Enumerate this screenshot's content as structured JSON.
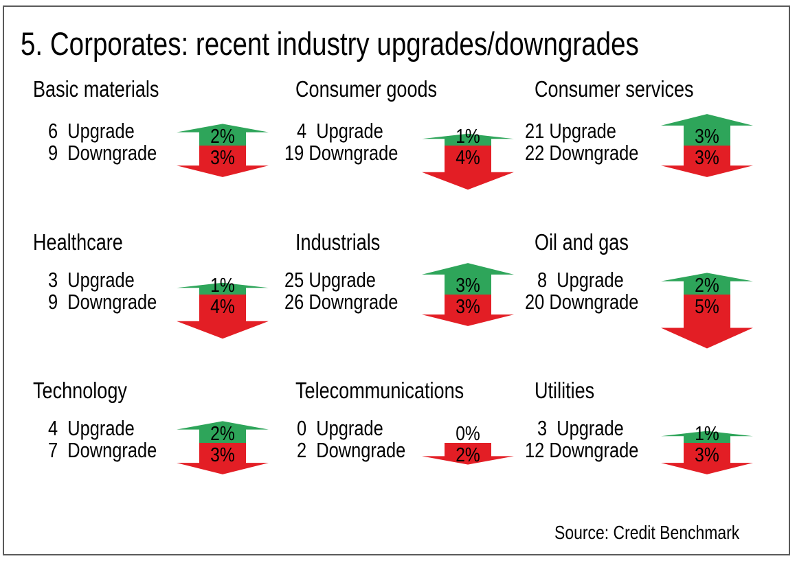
{
  "chart_data": {
    "type": "arrow-pictogram",
    "title": "5. Corporates: recent industry upgrades/downgrades",
    "source": "Source: Credit Benchmark",
    "upgrade_label": "Upgrade",
    "downgrade_label": "Downgrade",
    "colors": {
      "upgrade": "#2ea55a",
      "downgrade": "#e31e25"
    },
    "panels": [
      {
        "name": "Basic materials",
        "upgrades": 6,
        "downgrades": 9,
        "upgrade_pct": 2,
        "downgrade_pct": 3,
        "upgrade_pct_label": "2%",
        "downgrade_pct_label": "3%"
      },
      {
        "name": "Consumer goods",
        "upgrades": 4,
        "downgrades": 19,
        "upgrade_pct": 1,
        "downgrade_pct": 4,
        "upgrade_pct_label": "1%",
        "downgrade_pct_label": "4%"
      },
      {
        "name": "Consumer services",
        "upgrades": 21,
        "downgrades": 22,
        "upgrade_pct": 3,
        "downgrade_pct": 3,
        "upgrade_pct_label": "3%",
        "downgrade_pct_label": "3%"
      },
      {
        "name": "Healthcare",
        "upgrades": 3,
        "downgrades": 9,
        "upgrade_pct": 1,
        "downgrade_pct": 4,
        "upgrade_pct_label": "1%",
        "downgrade_pct_label": "4%"
      },
      {
        "name": "Industrials",
        "upgrades": 25,
        "downgrades": 26,
        "upgrade_pct": 3,
        "downgrade_pct": 3,
        "upgrade_pct_label": "3%",
        "downgrade_pct_label": "3%"
      },
      {
        "name": "Oil and gas",
        "upgrades": 8,
        "downgrades": 20,
        "upgrade_pct": 2,
        "downgrade_pct": 5,
        "upgrade_pct_label": "2%",
        "downgrade_pct_label": "5%"
      },
      {
        "name": "Technology",
        "upgrades": 4,
        "downgrades": 7,
        "upgrade_pct": 2,
        "downgrade_pct": 3,
        "upgrade_pct_label": "2%",
        "downgrade_pct_label": "3%"
      },
      {
        "name": "Telecommunications",
        "upgrades": 0,
        "downgrades": 2,
        "upgrade_pct": 0,
        "downgrade_pct": 2,
        "upgrade_pct_label": "0%",
        "downgrade_pct_label": "2%"
      },
      {
        "name": "Utilities",
        "upgrades": 3,
        "downgrades": 12,
        "upgrade_pct": 1,
        "downgrade_pct": 3,
        "upgrade_pct_label": "1%",
        "downgrade_pct_label": "3%"
      }
    ]
  }
}
